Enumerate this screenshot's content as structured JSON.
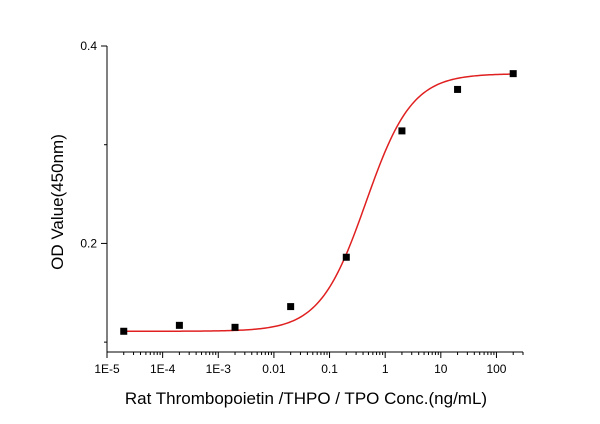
{
  "chart_data": {
    "type": "scatter",
    "title": "",
    "xlabel": "Rat Thrombopoietin /THPO / TPO  Conc.(ng/mL)",
    "ylabel": "OD Value(450nm)",
    "x_scale": "log",
    "xlim": [
      1e-05,
      300
    ],
    "ylim": [
      0.09,
      0.4
    ],
    "x_ticks": [
      {
        "value": 1e-05,
        "label": "1E-5"
      },
      {
        "value": 0.0001,
        "label": "1E-4"
      },
      {
        "value": 0.001,
        "label": "1E-3"
      },
      {
        "value": 0.01,
        "label": "0.01"
      },
      {
        "value": 0.1,
        "label": "0.1"
      },
      {
        "value": 1,
        "label": "1"
      },
      {
        "value": 10,
        "label": "10"
      },
      {
        "value": 100,
        "label": "100"
      }
    ],
    "y_ticks": [
      {
        "value": 0.2,
        "label": "0.2"
      },
      {
        "value": 0.4,
        "label": "0.4"
      }
    ],
    "grid": false,
    "series": [
      {
        "marker": "square",
        "color": "#000000",
        "x": [
          2e-05,
          0.0002,
          0.002,
          0.02,
          0.2,
          2,
          20,
          200
        ],
        "y": [
          0.111,
          0.117,
          0.115,
          0.136,
          0.186,
          0.314,
          0.356,
          0.372
        ]
      }
    ],
    "fit_curve": {
      "type": "4PL",
      "color": "#e02020",
      "bottom": 0.111,
      "top": 0.372,
      "ec50": 0.45,
      "hill": 1.05
    }
  }
}
